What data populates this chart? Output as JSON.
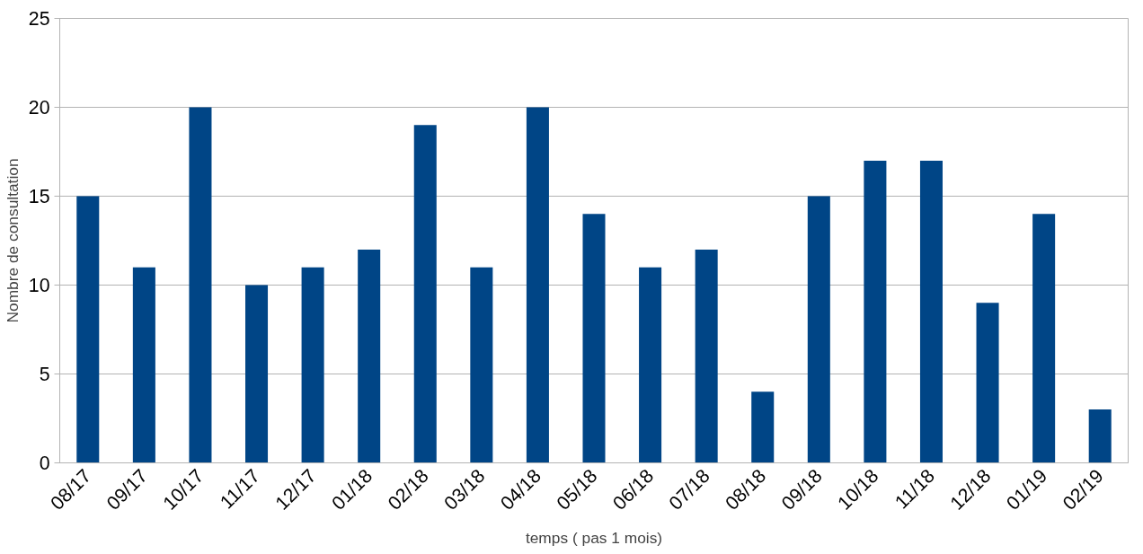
{
  "chart_data": {
    "type": "bar",
    "xlabel": "temps ( pas 1 mois)",
    "ylabel": "Nombre de consultation",
    "categories": [
      "08/17",
      "09/17",
      "10/17",
      "11/17",
      "12/17",
      "01/18",
      "02/18",
      "03/18",
      "04/18",
      "05/18",
      "06/18",
      "07/18",
      "08/18",
      "09/18",
      "10/18",
      "11/18",
      "12/18",
      "01/19",
      "02/19"
    ],
    "values": [
      15,
      11,
      20,
      10,
      11,
      12,
      19,
      11,
      20,
      14,
      11,
      12,
      4,
      15,
      17,
      17,
      9,
      14,
      3
    ],
    "color": "#004586",
    "ylim": [
      0,
      25
    ],
    "yticks": [
      0,
      5,
      10,
      15,
      20,
      25
    ],
    "grid": "y"
  }
}
